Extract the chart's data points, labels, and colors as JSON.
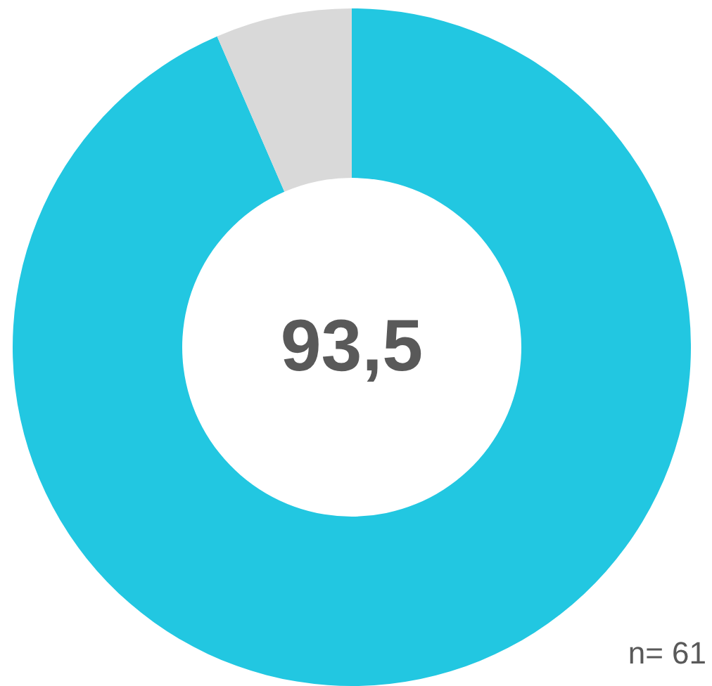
{
  "chart_data": {
    "type": "donut",
    "categories": [
      null,
      null
    ],
    "values": [
      93.5,
      6.5
    ],
    "colors": [
      "#22c7e1",
      "#d9d9d9"
    ],
    "value_labels": [
      "93,5",
      null
    ],
    "annotations": [
      "n= 61"
    ],
    "legend": false
  }
}
